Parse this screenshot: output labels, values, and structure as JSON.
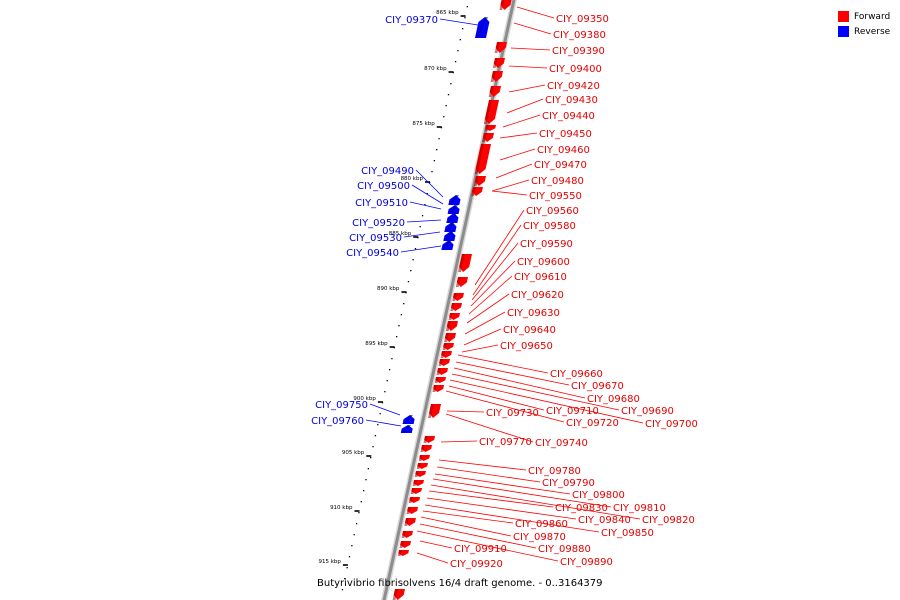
{
  "legend": {
    "forward_label": "Forward",
    "reverse_label": "Reverse",
    "forward_color": "#ff0000",
    "reverse_color": "#0000ff"
  },
  "caption": "Butyrivibrio fibrisolvens 16/4 draft genome. - 0..3164379",
  "scale_ticks": [
    "865 kbp",
    "870 kbp",
    "875 kbp",
    "880 kbp",
    "885 kbp",
    "890 kbp",
    "895 kbp",
    "900 kbp",
    "905 kbp",
    "910 kbp",
    "915 kbp"
  ],
  "reverse_genes": [
    "CIY_09370",
    "CIY_09490",
    "CIY_09500",
    "CIY_09510",
    "CIY_09520",
    "CIY_09530",
    "CIY_09540",
    "CIY_09750",
    "CIY_09760"
  ],
  "forward_genes": [
    "CIY_09350",
    "CIY_09380",
    "CIY_09390",
    "CIY_09400",
    "CIY_09420",
    "CIY_09430",
    "CIY_09440",
    "CIY_09450",
    "CIY_09460",
    "CIY_09470",
    "CIY_09480",
    "CIY_09550",
    "CIY_09560",
    "CIY_09580",
    "CIY_09590",
    "CIY_09600",
    "CIY_09610",
    "CIY_09620",
    "CIY_09630",
    "CIY_09640",
    "CIY_09650",
    "CIY_09660",
    "CIY_09670",
    "CIY_09680",
    "CIY_09690",
    "CIY_09700",
    "CIY_09710",
    "CIY_09720",
    "CIY_09730",
    "CIY_09740",
    "CIY_09770",
    "CIY_09780",
    "CIY_09790",
    "CIY_09800",
    "CIY_09810",
    "CIY_09820",
    "CIY_09830",
    "CIY_09840",
    "CIY_09850",
    "CIY_09860",
    "CIY_09870",
    "CIY_09880",
    "CIY_09890",
    "CIY_09910",
    "CIY_09920"
  ]
}
